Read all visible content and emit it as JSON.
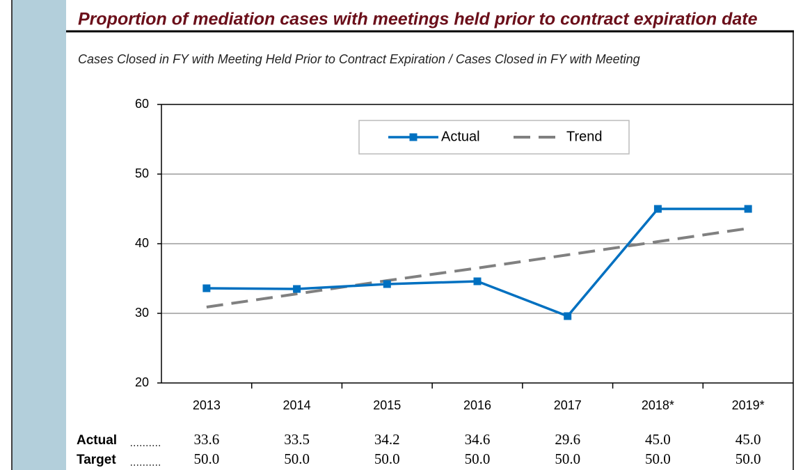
{
  "chart_data": {
    "type": "line",
    "title": "Proportion of mediation cases with meetings held prior to contract expiration date",
    "subtitle": "Cases Closed in FY with Meeting Held Prior to Contract Expiration / Cases Closed in FY with Meeting",
    "categories": [
      "2013",
      "2014",
      "2015",
      "2016",
      "2017",
      "2018*",
      "2019*"
    ],
    "series": [
      {
        "name": "Actual",
        "color": "#0070c0",
        "style": "solid",
        "marker": "square",
        "values": [
          33.6,
          33.5,
          34.2,
          34.6,
          29.6,
          45.0,
          45.0
        ]
      },
      {
        "name": "Trend",
        "color": "#808080",
        "style": "dashed",
        "marker": "none",
        "values": [
          30.9,
          32.8,
          34.7,
          36.5,
          38.4,
          40.3,
          42.2
        ]
      }
    ],
    "ylim": [
      20,
      60
    ],
    "yticks": [
      20,
      30,
      40,
      50,
      60
    ],
    "grid": true,
    "legend": "top",
    "table": {
      "rows": [
        {
          "label": "Actual",
          "values": [
            "33.6",
            "33.5",
            "34.2",
            "34.6",
            "29.6",
            "45.0",
            "45.0"
          ]
        },
        {
          "label": "Target",
          "values": [
            "50.0",
            "50.0",
            "50.0",
            "50.0",
            "50.0",
            "50.0",
            "50.0"
          ]
        }
      ]
    }
  }
}
